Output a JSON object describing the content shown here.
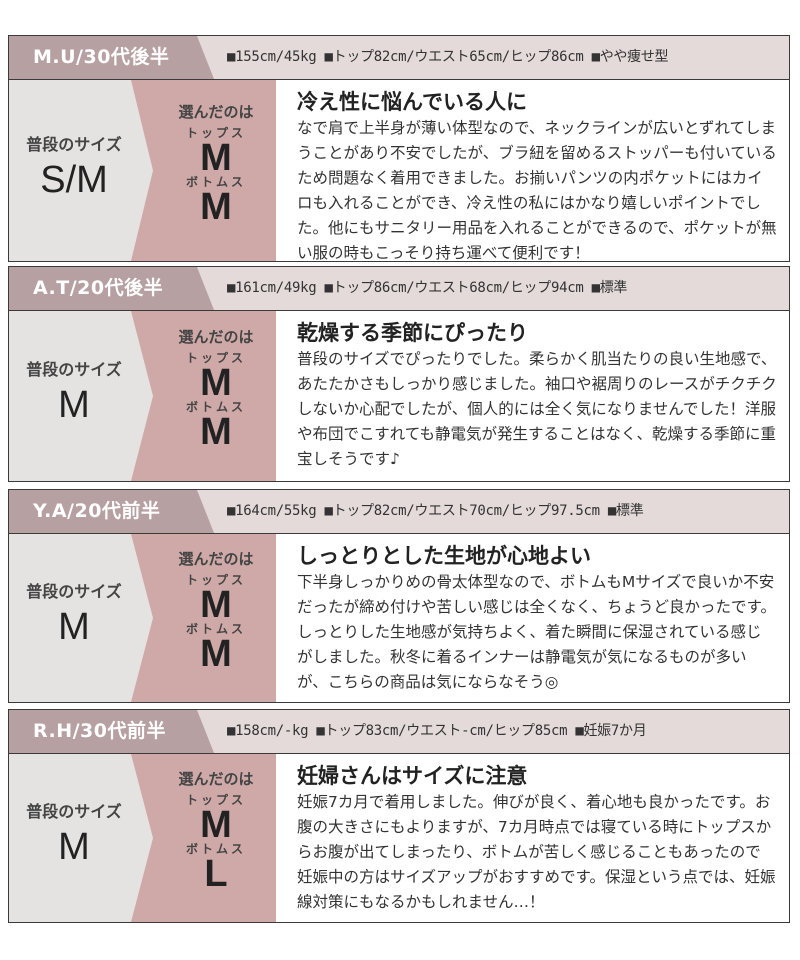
{
  "labels": {
    "usual_size": "普段のサイズ",
    "chosen": "選んだのは",
    "tops": "トップス",
    "bottoms": "ボトムス"
  },
  "colors": {
    "header_label": "#b7a0a2",
    "header_bg": "#e3dad9",
    "chosen_bg": "#cfa9a8",
    "usual_bg": "#e5e3e2"
  },
  "reviews": [
    {
      "reviewer": "M.U/30代後半",
      "spec": "■155cm/45kg ■トップ82cm/ウエスト65cm/ヒップ86cm ■やや痩せ型",
      "usual_size": "S/M",
      "tops_size": "M",
      "bottoms_size": "M",
      "title": "冷え性に悩んでいる人に",
      "text": "なで肩で上半身が薄い体型なので、ネックラインが広いとずれてしまうことがあり不安でしたが、ブラ紐を留めるストッパーも付いているため問題なく着用できました。お揃いパンツの内ポケットにはカイロも入れることができ、冷え性の私にはかなり嬉しいポイントでした。他にもサニタリー用品を入れることができるので、ポケットが無い服の時もこっそり持ち運べて便利です！"
    },
    {
      "reviewer": "A.T/20代後半",
      "spec": "■161cm/49kg ■トップ86cm/ウエスト68cm/ヒップ94cm ■標準",
      "usual_size": "M",
      "tops_size": "M",
      "bottoms_size": "M",
      "title": "乾燥する季節にぴったり",
      "text": "普段のサイズでぴったりでした。柔らかく肌当たりの良い生地感で、あたたかさもしっかり感じました。袖口や裾周りのレースがチクチクしないか心配でしたが、個人的には全く気になりませんでした！洋服や布団でこすれても静電気が発生することはなく、乾燥する季節に重宝しそうです♪"
    },
    {
      "reviewer": "Y.A/20代前半",
      "spec": "■164cm/55kg ■トップ82cm/ウエスト70cm/ヒップ97.5cm ■標準",
      "usual_size": "M",
      "tops_size": "M",
      "bottoms_size": "M",
      "title": "しっとりとした生地が心地よい",
      "text": "下半身しっかりめの骨太体型なので、ボトムもMサイズで良いか不安だったが締め付けや苦しい感じは全くなく、ちょうど良かったです。しっとりした生地感が気持ちよく、着た瞬間に保湿されている感じがしました。秋冬に着るインナーは静電気が気になるものが多いが、こちらの商品は気にならなそう◎"
    },
    {
      "reviewer": "R.H/30代前半",
      "spec": "■158cm/-kg ■トップ83cm/ウエスト-cm/ヒップ85cm ■妊娠7か月",
      "usual_size": "M",
      "tops_size": "M",
      "bottoms_size": "L",
      "title": "妊婦さんはサイズに注意",
      "text": "妊娠7カ月で着用しました。伸びが良く、着心地も良かったです。お腹の大きさにもよりますが、7カ月時点では寝ている時にトップスからお腹が出てしまったり、ボトムが苦しく感じることもあったので 妊娠中の方はサイズアップがおすすめです。保湿という点では、妊娠線対策にもなるかもしれません…！"
    }
  ]
}
